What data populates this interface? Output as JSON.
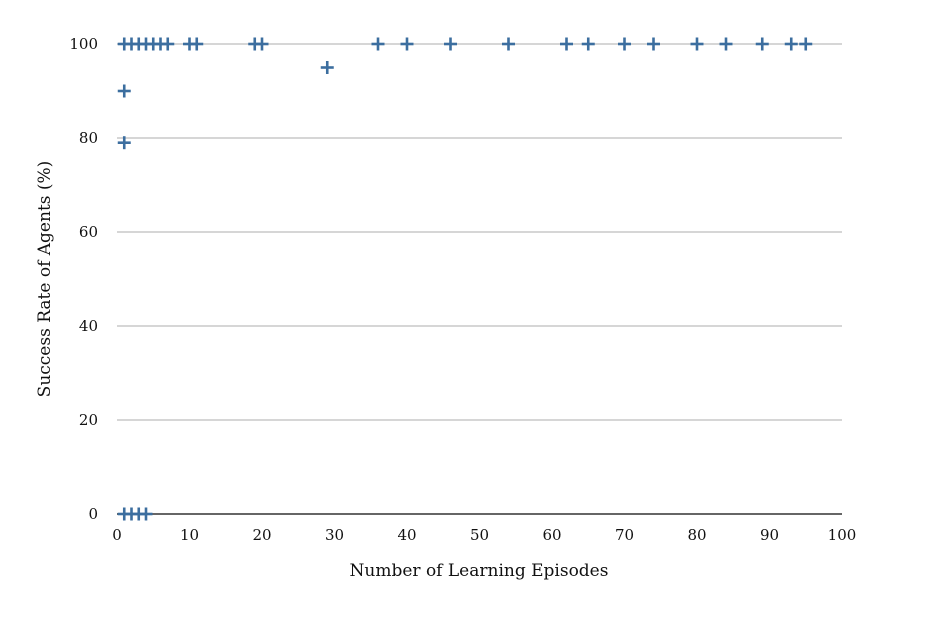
{
  "chart_data": {
    "type": "scatter",
    "title": "",
    "xlabel": "Number of Learning Episodes",
    "ylabel": "Success Rate of Agents (%)",
    "xlim": [
      0,
      100
    ],
    "ylim": [
      0,
      100
    ],
    "xticks": [
      0,
      10,
      20,
      30,
      40,
      50,
      60,
      70,
      80,
      90,
      100
    ],
    "yticks": [
      0,
      20,
      40,
      60,
      80,
      100
    ],
    "grid": "horizontal",
    "marker": "plus",
    "color": "#3c6e9f",
    "series": [
      {
        "points": [
          {
            "x": 1,
            "y": 0
          },
          {
            "x": 2,
            "y": 0
          },
          {
            "x": 3,
            "y": 0
          },
          {
            "x": 4,
            "y": 0
          },
          {
            "x": 1,
            "y": 79
          },
          {
            "x": 1,
            "y": 90
          },
          {
            "x": 1,
            "y": 100
          },
          {
            "x": 2,
            "y": 100
          },
          {
            "x": 3,
            "y": 100
          },
          {
            "x": 4,
            "y": 100
          },
          {
            "x": 5,
            "y": 100
          },
          {
            "x": 6,
            "y": 100
          },
          {
            "x": 7,
            "y": 100
          },
          {
            "x": 10,
            "y": 100
          },
          {
            "x": 11,
            "y": 100
          },
          {
            "x": 19,
            "y": 100
          },
          {
            "x": 20,
            "y": 100
          },
          {
            "x": 29,
            "y": 95
          },
          {
            "x": 36,
            "y": 100
          },
          {
            "x": 40,
            "y": 100
          },
          {
            "x": 46,
            "y": 100
          },
          {
            "x": 54,
            "y": 100
          },
          {
            "x": 62,
            "y": 100
          },
          {
            "x": 65,
            "y": 100
          },
          {
            "x": 70,
            "y": 100
          },
          {
            "x": 74,
            "y": 100
          },
          {
            "x": 80,
            "y": 100
          },
          {
            "x": 84,
            "y": 100
          },
          {
            "x": 89,
            "y": 100
          },
          {
            "x": 93,
            "y": 100
          },
          {
            "x": 95,
            "y": 100
          }
        ]
      }
    ]
  }
}
